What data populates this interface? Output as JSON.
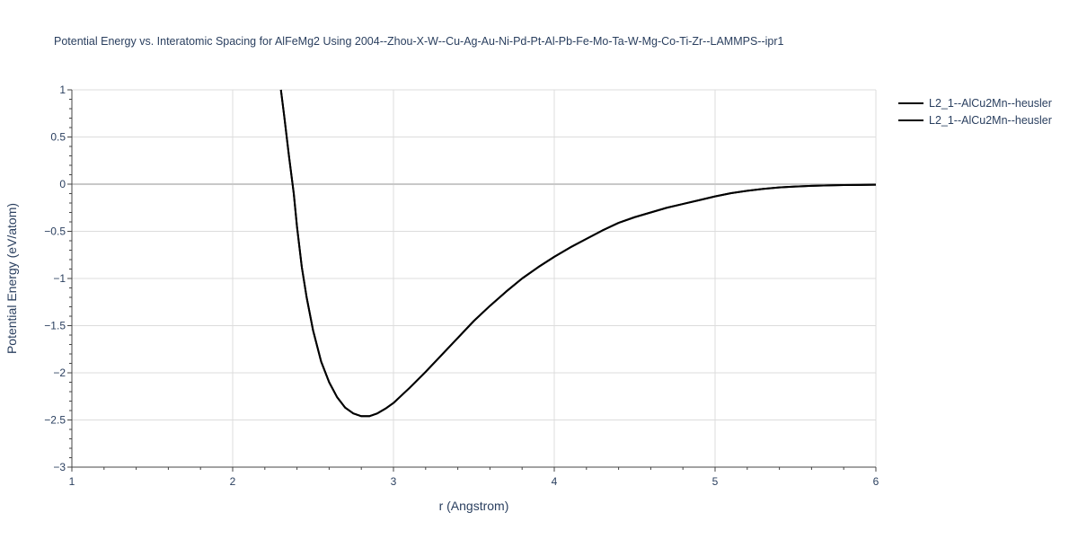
{
  "chart_data": {
    "type": "line",
    "title": "Potential Energy vs. Interatomic Spacing for AlFeMg2 Using 2004--Zhou-X-W--Cu-Ag-Au-Ni-Pd-Pt-Al-Pb-Fe-Mo-Ta-W-Mg-Co-Ti-Zr--LAMMPS--ipr1",
    "xlabel": "r (Angstrom)",
    "ylabel": "Potential Energy (eV/atom)",
    "xlim": [
      1,
      6
    ],
    "ylim": [
      -3,
      1
    ],
    "x_ticks": [
      1,
      2,
      3,
      4,
      5,
      6
    ],
    "x_tick_labels": [
      "1",
      "2",
      "3",
      "4",
      "5",
      "6"
    ],
    "y_ticks": [
      1,
      0.5,
      0,
      -0.5,
      -1,
      -1.5,
      -2,
      -2.5,
      -3
    ],
    "y_tick_labels": [
      "1",
      "0.5",
      "0",
      "−0.5",
      "−1",
      "−1.5",
      "−2",
      "−2.5",
      "−3"
    ],
    "grid": true,
    "legend_position": "top-right",
    "line_color": "#000000",
    "series": [
      {
        "name": "L2_1--AlCu2Mn--heusler",
        "x": [
          2.3,
          2.32,
          2.35,
          2.38,
          2.4,
          2.43,
          2.46,
          2.5,
          2.55,
          2.6,
          2.65,
          2.7,
          2.75,
          2.8,
          2.85,
          2.9,
          2.95,
          3.0,
          3.05,
          3.1,
          3.2,
          3.3,
          3.4,
          3.5,
          3.6,
          3.7,
          3.8,
          3.9,
          4.0,
          4.1,
          4.2,
          4.3,
          4.4,
          4.5,
          4.6,
          4.7,
          4.8,
          4.9,
          5.0,
          5.1,
          5.2,
          5.3,
          5.4,
          5.5,
          5.6,
          5.7,
          5.8,
          5.9,
          6.0
        ],
        "y": [
          1.0,
          0.73,
          0.3,
          -0.1,
          -0.45,
          -0.88,
          -1.2,
          -1.55,
          -1.88,
          -2.1,
          -2.26,
          -2.37,
          -2.43,
          -2.46,
          -2.46,
          -2.43,
          -2.38,
          -2.32,
          -2.24,
          -2.16,
          -1.99,
          -1.81,
          -1.63,
          -1.45,
          -1.29,
          -1.14,
          -1.0,
          -0.88,
          -0.77,
          -0.67,
          -0.58,
          -0.49,
          -0.41,
          -0.35,
          -0.3,
          -0.25,
          -0.21,
          -0.17,
          -0.13,
          -0.095,
          -0.07,
          -0.05,
          -0.035,
          -0.025,
          -0.018,
          -0.013,
          -0.01,
          -0.008,
          -0.006
        ]
      },
      {
        "name": "L2_1--AlCu2Mn--heusler",
        "x": [
          2.3,
          2.32,
          2.35,
          2.38,
          2.4,
          2.43,
          2.46,
          2.5,
          2.55,
          2.6,
          2.65,
          2.7,
          2.75,
          2.8,
          2.85,
          2.9,
          2.95,
          3.0,
          3.05,
          3.1,
          3.2,
          3.3,
          3.4,
          3.5,
          3.6,
          3.7,
          3.8,
          3.9,
          4.0,
          4.1,
          4.2,
          4.3,
          4.4,
          4.5,
          4.6,
          4.7,
          4.8,
          4.9,
          5.0,
          5.1,
          5.2,
          5.3,
          5.4,
          5.5,
          5.6,
          5.7,
          5.8,
          5.9,
          6.0
        ],
        "y": [
          1.0,
          0.73,
          0.3,
          -0.1,
          -0.45,
          -0.88,
          -1.2,
          -1.55,
          -1.88,
          -2.1,
          -2.26,
          -2.37,
          -2.43,
          -2.46,
          -2.46,
          -2.43,
          -2.38,
          -2.32,
          -2.24,
          -2.16,
          -1.99,
          -1.81,
          -1.63,
          -1.45,
          -1.29,
          -1.14,
          -1.0,
          -0.88,
          -0.77,
          -0.67,
          -0.58,
          -0.49,
          -0.41,
          -0.35,
          -0.3,
          -0.25,
          -0.21,
          -0.17,
          -0.13,
          -0.095,
          -0.07,
          -0.05,
          -0.035,
          -0.025,
          -0.018,
          -0.013,
          -0.01,
          -0.008,
          -0.006
        ]
      }
    ]
  }
}
